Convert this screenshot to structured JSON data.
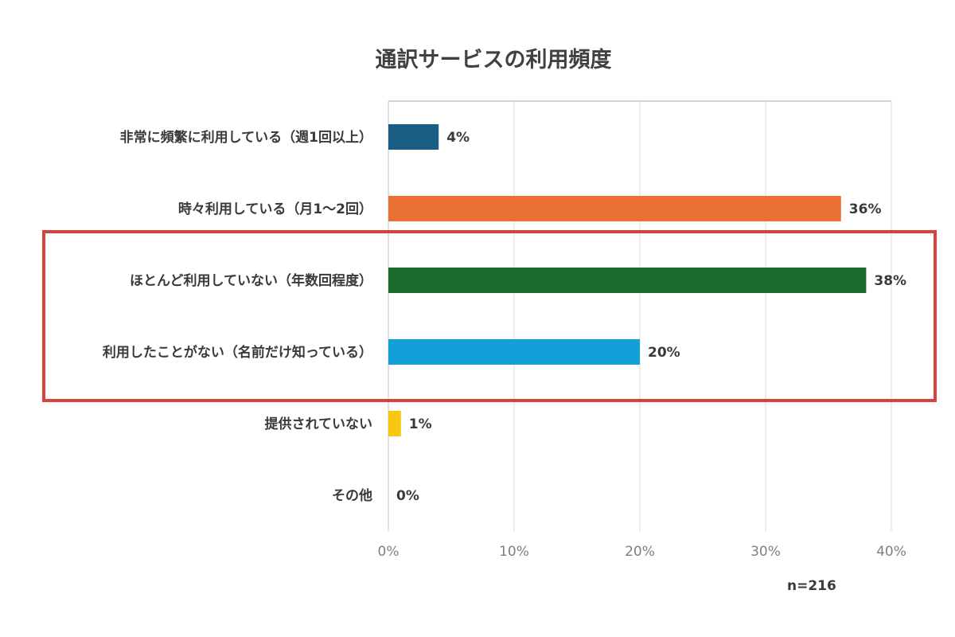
{
  "chart_data": {
    "type": "bar",
    "orientation": "horizontal",
    "title": "通訳サービスの利用頻度",
    "categories": [
      "非常に頻繁に利用している（週1回以上）",
      "時々利用している（月1〜2回）",
      "ほとんど利用していない（年数回程度）",
      "利用したことがない（名前だけ知っている）",
      "提供されていない",
      "その他"
    ],
    "values": [
      4,
      36,
      38,
      20,
      1,
      0
    ],
    "data_labels": [
      "4%",
      "36%",
      "38%",
      "20%",
      "1%",
      "0%"
    ],
    "bar_colors": [
      "#1a5e86",
      "#ea7034",
      "#1d6b2c",
      "#139fd8",
      "#f6c812",
      "#9e9e9e"
    ],
    "xlim": [
      0,
      40
    ],
    "x_ticks": [
      0,
      10,
      20,
      30,
      40
    ],
    "x_tick_labels": [
      "0%",
      "10%",
      "20%",
      "30%",
      "40%"
    ],
    "grid": true,
    "xlabel": "",
    "ylabel": "",
    "highlighted_categories": [
      2,
      3
    ],
    "highlight_color": "#d9413f"
  },
  "footnote": "n=216"
}
